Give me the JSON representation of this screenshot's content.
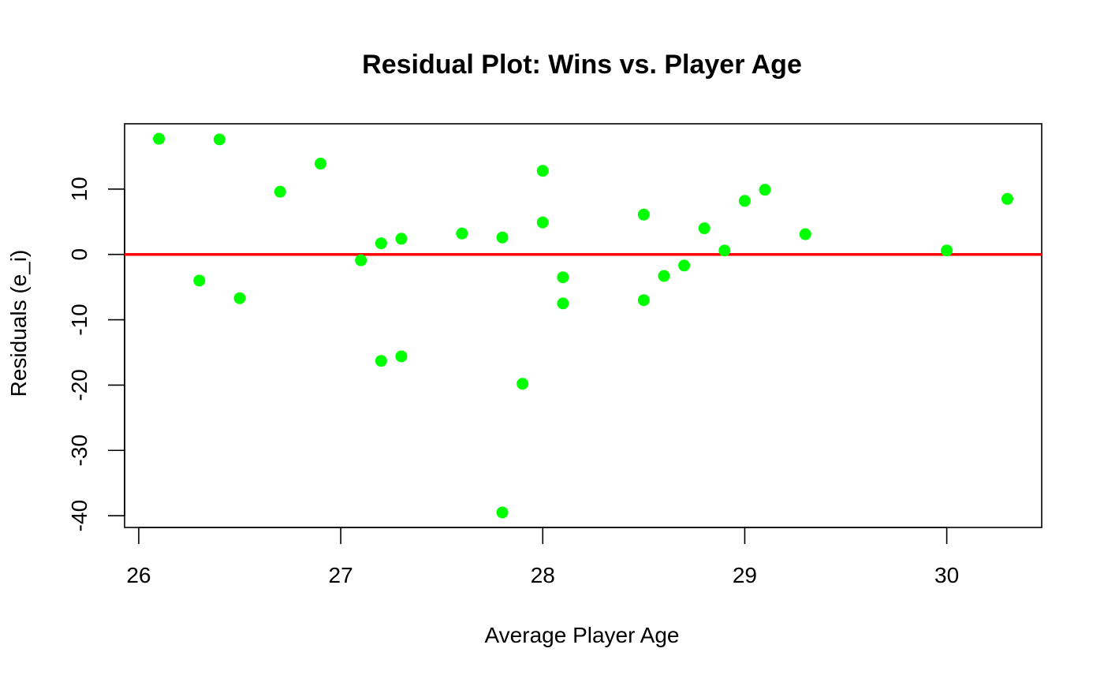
{
  "chart_data": {
    "type": "scatter",
    "title": "Residual Plot: Wins vs. Player Age",
    "xlabel": "Average Player Age",
    "ylabel": "Residuals (e_i)",
    "xlim": [
      25.93,
      30.47
    ],
    "ylim": [
      -41.8,
      20.0
    ],
    "xticks": [
      26,
      27,
      28,
      29,
      30
    ],
    "yticks": [
      -40,
      -30,
      -20,
      -10,
      0,
      10
    ],
    "grid": false,
    "legend": "none",
    "point_color": "#00ff00",
    "reference_line": {
      "y": 0,
      "color": "#ff0000"
    },
    "points": [
      {
        "x": 26.1,
        "y": 17.7
      },
      {
        "x": 26.3,
        "y": -4.0
      },
      {
        "x": 26.4,
        "y": 17.6
      },
      {
        "x": 26.5,
        "y": -6.7
      },
      {
        "x": 26.7,
        "y": 9.6
      },
      {
        "x": 26.9,
        "y": 13.9
      },
      {
        "x": 27.1,
        "y": -0.9
      },
      {
        "x": 27.2,
        "y": 1.7
      },
      {
        "x": 27.2,
        "y": -16.3
      },
      {
        "x": 27.3,
        "y": 2.4
      },
      {
        "x": 27.3,
        "y": -15.6
      },
      {
        "x": 27.6,
        "y": 3.2
      },
      {
        "x": 27.8,
        "y": 2.6
      },
      {
        "x": 27.8,
        "y": -39.5
      },
      {
        "x": 27.9,
        "y": -19.8
      },
      {
        "x": 28.0,
        "y": 12.8
      },
      {
        "x": 28.0,
        "y": 4.9
      },
      {
        "x": 28.1,
        "y": -3.5
      },
      {
        "x": 28.1,
        "y": -7.5
      },
      {
        "x": 28.5,
        "y": 6.1
      },
      {
        "x": 28.5,
        "y": -7.0
      },
      {
        "x": 28.6,
        "y": -3.3
      },
      {
        "x": 28.7,
        "y": -1.7
      },
      {
        "x": 28.8,
        "y": 4.0
      },
      {
        "x": 28.9,
        "y": 0.6
      },
      {
        "x": 29.0,
        "y": 8.2
      },
      {
        "x": 29.1,
        "y": 9.9
      },
      {
        "x": 29.3,
        "y": 3.1
      },
      {
        "x": 30.0,
        "y": 0.6
      },
      {
        "x": 30.3,
        "y": 8.5
      }
    ]
  }
}
